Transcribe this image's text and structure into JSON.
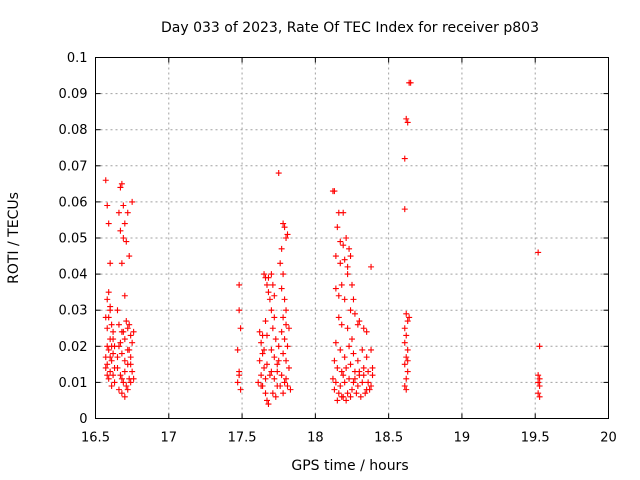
{
  "chart_data": {
    "type": "scatter",
    "title": "Day 033 of 2023, Rate Of TEC Index for receiver p803",
    "xlabel": "GPS time / hours",
    "ylabel": "ROTI / TECUs",
    "xlim": [
      16.5,
      20
    ],
    "ylim": [
      0,
      0.1
    ],
    "x_ticks": [
      "16.5",
      "17",
      "17.5",
      "18",
      "18.5",
      "19",
      "19.5",
      "20"
    ],
    "y_ticks": [
      "0",
      "0.01",
      "0.02",
      "0.03",
      "0.04",
      "0.05",
      "0.06",
      "0.07",
      "0.08",
      "0.09",
      "0.1"
    ],
    "grid": true,
    "marker": "+",
    "marker_color": "#ff0000",
    "series": [
      {
        "points": [
          [
            16.57,
            0.066
          ],
          [
            16.58,
            0.059
          ],
          [
            16.59,
            0.054
          ],
          [
            16.6,
            0.043
          ],
          [
            16.58,
            0.033
          ],
          [
            16.59,
            0.035
          ],
          [
            16.6,
            0.031
          ],
          [
            16.57,
            0.028
          ],
          [
            16.58,
            0.025
          ],
          [
            16.6,
            0.022
          ],
          [
            16.59,
            0.019
          ],
          [
            16.57,
            0.017
          ],
          [
            16.58,
            0.015
          ],
          [
            16.6,
            0.013
          ],
          [
            16.59,
            0.011
          ],
          [
            16.61,
            0.009
          ],
          [
            16.62,
            0.012
          ],
          [
            16.61,
            0.016
          ],
          [
            16.63,
            0.02
          ],
          [
            16.62,
            0.024
          ],
          [
            16.6,
            0.03
          ],
          [
            16.61,
            0.026
          ],
          [
            16.63,
            0.014
          ],
          [
            16.62,
            0.018
          ],
          [
            16.58,
            0.02
          ],
          [
            16.57,
            0.014
          ],
          [
            16.6,
            0.017
          ],
          [
            16.62,
            0.022
          ],
          [
            16.63,
            0.01
          ],
          [
            16.59,
            0.028
          ],
          [
            16.61,
            0.02
          ],
          [
            16.58,
            0.012
          ],
          [
            16.67,
            0.064
          ],
          [
            16.68,
            0.065
          ],
          [
            16.69,
            0.059
          ],
          [
            16.66,
            0.057
          ],
          [
            16.7,
            0.054
          ],
          [
            16.67,
            0.052
          ],
          [
            16.69,
            0.05
          ],
          [
            16.71,
            0.049
          ],
          [
            16.68,
            0.043
          ],
          [
            16.72,
            0.057
          ],
          [
            16.73,
            0.045
          ],
          [
            16.75,
            0.06
          ],
          [
            16.7,
            0.034
          ],
          [
            16.65,
            0.03
          ],
          [
            16.66,
            0.026
          ],
          [
            16.68,
            0.024
          ],
          [
            16.7,
            0.022
          ],
          [
            16.72,
            0.025
          ],
          [
            16.74,
            0.023
          ],
          [
            16.66,
            0.02
          ],
          [
            16.68,
            0.018
          ],
          [
            16.7,
            0.016
          ],
          [
            16.72,
            0.019
          ],
          [
            16.74,
            0.017
          ],
          [
            16.65,
            0.014
          ],
          [
            16.67,
            0.012
          ],
          [
            16.69,
            0.01
          ],
          [
            16.71,
            0.009
          ],
          [
            16.73,
            0.011
          ],
          [
            16.75,
            0.013
          ],
          [
            16.66,
            0.008
          ],
          [
            16.68,
            0.007
          ],
          [
            16.7,
            0.006
          ],
          [
            16.72,
            0.008
          ],
          [
            16.74,
            0.01
          ],
          [
            16.76,
            0.024
          ],
          [
            16.75,
            0.021
          ],
          [
            16.73,
            0.026
          ],
          [
            16.71,
            0.027
          ],
          [
            16.69,
            0.024
          ],
          [
            16.67,
            0.021
          ],
          [
            16.65,
            0.017
          ],
          [
            16.74,
            0.015
          ],
          [
            16.76,
            0.011
          ],
          [
            16.7,
            0.013
          ],
          [
            16.72,
            0.015
          ],
          [
            16.68,
            0.011
          ],
          [
            16.73,
            0.019
          ],
          [
            17.48,
            0.037
          ],
          [
            17.48,
            0.03
          ],
          [
            17.49,
            0.025
          ],
          [
            17.47,
            0.019
          ],
          [
            17.48,
            0.013
          ],
          [
            17.47,
            0.01
          ],
          [
            17.49,
            0.008
          ],
          [
            17.48,
            0.012
          ],
          [
            17.62,
            0.024
          ],
          [
            17.63,
            0.021
          ],
          [
            17.64,
            0.018
          ],
          [
            17.62,
            0.016
          ],
          [
            17.65,
            0.014
          ],
          [
            17.63,
            0.012
          ],
          [
            17.61,
            0.01
          ],
          [
            17.64,
            0.009
          ],
          [
            17.66,
            0.007
          ],
          [
            17.67,
            0.005
          ],
          [
            17.68,
            0.004
          ],
          [
            17.66,
            0.011
          ],
          [
            17.67,
            0.015
          ],
          [
            17.65,
            0.019
          ],
          [
            17.64,
            0.023
          ],
          [
            17.66,
            0.027
          ],
          [
            17.65,
            0.04
          ],
          [
            17.66,
            0.039
          ],
          [
            17.67,
            0.037
          ],
          [
            17.68,
            0.035
          ],
          [
            17.69,
            0.033
          ],
          [
            17.68,
            0.039
          ],
          [
            17.7,
            0.04
          ],
          [
            17.71,
            0.037
          ],
          [
            17.72,
            0.034
          ],
          [
            17.7,
            0.03
          ],
          [
            17.72,
            0.028
          ],
          [
            17.71,
            0.025
          ],
          [
            17.73,
            0.022
          ],
          [
            17.7,
            0.019
          ],
          [
            17.72,
            0.017
          ],
          [
            17.74,
            0.015
          ],
          [
            17.7,
            0.013
          ],
          [
            17.72,
            0.011
          ],
          [
            17.74,
            0.009
          ],
          [
            17.71,
            0.007
          ],
          [
            17.73,
            0.006
          ],
          [
            17.75,
            0.068
          ],
          [
            17.78,
            0.054
          ],
          [
            17.79,
            0.053
          ],
          [
            17.8,
            0.05
          ],
          [
            17.81,
            0.051
          ],
          [
            17.77,
            0.047
          ],
          [
            17.76,
            0.043
          ],
          [
            17.78,
            0.04
          ],
          [
            17.77,
            0.036
          ],
          [
            17.79,
            0.033
          ],
          [
            17.8,
            0.03
          ],
          [
            17.78,
            0.028
          ],
          [
            17.8,
            0.026
          ],
          [
            17.82,
            0.025
          ],
          [
            17.77,
            0.024
          ],
          [
            17.79,
            0.022
          ],
          [
            17.81,
            0.02
          ],
          [
            17.78,
            0.018
          ],
          [
            17.8,
            0.016
          ],
          [
            17.82,
            0.014
          ],
          [
            17.77,
            0.012
          ],
          [
            17.79,
            0.01
          ],
          [
            17.81,
            0.009
          ],
          [
            17.83,
            0.008
          ],
          [
            17.76,
            0.009
          ],
          [
            17.78,
            0.007
          ],
          [
            17.8,
            0.011
          ],
          [
            17.74,
            0.013
          ],
          [
            17.75,
            0.016
          ],
          [
            17.63,
            0.009
          ],
          [
            17.69,
            0.012
          ],
          [
            17.75,
            0.02
          ],
          [
            17.67,
            0.023
          ],
          [
            18.12,
            0.063
          ],
          [
            18.13,
            0.063
          ],
          [
            18.16,
            0.057
          ],
          [
            18.19,
            0.057
          ],
          [
            18.15,
            0.053
          ],
          [
            18.17,
            0.049
          ],
          [
            18.19,
            0.048
          ],
          [
            18.21,
            0.05
          ],
          [
            18.23,
            0.047
          ],
          [
            18.14,
            0.045
          ],
          [
            18.17,
            0.043
          ],
          [
            18.2,
            0.044
          ],
          [
            18.24,
            0.045
          ],
          [
            18.22,
            0.042
          ],
          [
            18.25,
            0.037
          ],
          [
            18.14,
            0.036
          ],
          [
            18.18,
            0.037
          ],
          [
            18.22,
            0.04
          ],
          [
            18.16,
            0.034
          ],
          [
            18.2,
            0.033
          ],
          [
            18.26,
            0.033
          ],
          [
            18.24,
            0.03
          ],
          [
            18.27,
            0.029
          ],
          [
            18.29,
            0.026
          ],
          [
            18.16,
            0.028
          ],
          [
            18.18,
            0.026
          ],
          [
            18.22,
            0.025
          ],
          [
            18.25,
            0.022
          ],
          [
            18.3,
            0.027
          ],
          [
            18.33,
            0.025
          ],
          [
            18.35,
            0.024
          ],
          [
            18.38,
            0.042
          ],
          [
            18.14,
            0.021
          ],
          [
            18.17,
            0.019
          ],
          [
            18.2,
            0.017
          ],
          [
            18.23,
            0.02
          ],
          [
            18.26,
            0.018
          ],
          [
            18.29,
            0.016
          ],
          [
            18.32,
            0.019
          ],
          [
            18.35,
            0.017
          ],
          [
            18.38,
            0.019
          ],
          [
            18.13,
            0.016
          ],
          [
            18.15,
            0.014
          ],
          [
            18.18,
            0.013
          ],
          [
            18.21,
            0.014
          ],
          [
            18.24,
            0.015
          ],
          [
            18.27,
            0.013
          ],
          [
            18.3,
            0.012
          ],
          [
            18.33,
            0.014
          ],
          [
            18.36,
            0.013
          ],
          [
            18.39,
            0.012
          ],
          [
            18.12,
            0.011
          ],
          [
            18.14,
            0.01
          ],
          [
            18.17,
            0.009
          ],
          [
            18.2,
            0.01
          ],
          [
            18.23,
            0.011
          ],
          [
            18.26,
            0.01
          ],
          [
            18.29,
            0.009
          ],
          [
            18.32,
            0.01
          ],
          [
            18.35,
            0.008
          ],
          [
            18.38,
            0.009
          ],
          [
            18.13,
            0.008
          ],
          [
            18.16,
            0.007
          ],
          [
            18.19,
            0.006
          ],
          [
            18.22,
            0.007
          ],
          [
            18.25,
            0.008
          ],
          [
            18.28,
            0.007
          ],
          [
            18.31,
            0.006
          ],
          [
            18.34,
            0.007
          ],
          [
            18.37,
            0.008
          ],
          [
            18.15,
            0.005
          ],
          [
            18.18,
            0.006
          ],
          [
            18.21,
            0.005
          ],
          [
            18.24,
            0.006
          ],
          [
            18.27,
            0.011
          ],
          [
            18.3,
            0.013
          ],
          [
            18.33,
            0.012
          ],
          [
            18.36,
            0.01
          ],
          [
            18.39,
            0.014
          ],
          [
            18.19,
            0.012
          ],
          [
            18.61,
            0.058
          ],
          [
            18.61,
            0.072
          ],
          [
            18.62,
            0.083
          ],
          [
            18.63,
            0.082
          ],
          [
            18.64,
            0.093
          ],
          [
            18.65,
            0.093
          ],
          [
            18.62,
            0.029
          ],
          [
            18.63,
            0.027
          ],
          [
            18.61,
            0.025
          ],
          [
            18.62,
            0.023
          ],
          [
            18.61,
            0.021
          ],
          [
            18.63,
            0.019
          ],
          [
            18.62,
            0.017
          ],
          [
            18.61,
            0.015
          ],
          [
            18.63,
            0.013
          ],
          [
            18.62,
            0.011
          ],
          [
            18.61,
            0.009
          ],
          [
            18.62,
            0.008
          ],
          [
            18.64,
            0.028
          ],
          [
            18.63,
            0.016
          ],
          [
            19.52,
            0.046
          ],
          [
            19.53,
            0.02
          ],
          [
            19.52,
            0.012
          ],
          [
            19.53,
            0.011
          ],
          [
            19.52,
            0.01
          ],
          [
            19.53,
            0.009
          ],
          [
            19.52,
            0.007
          ],
          [
            19.53,
            0.006
          ]
        ]
      }
    ]
  }
}
